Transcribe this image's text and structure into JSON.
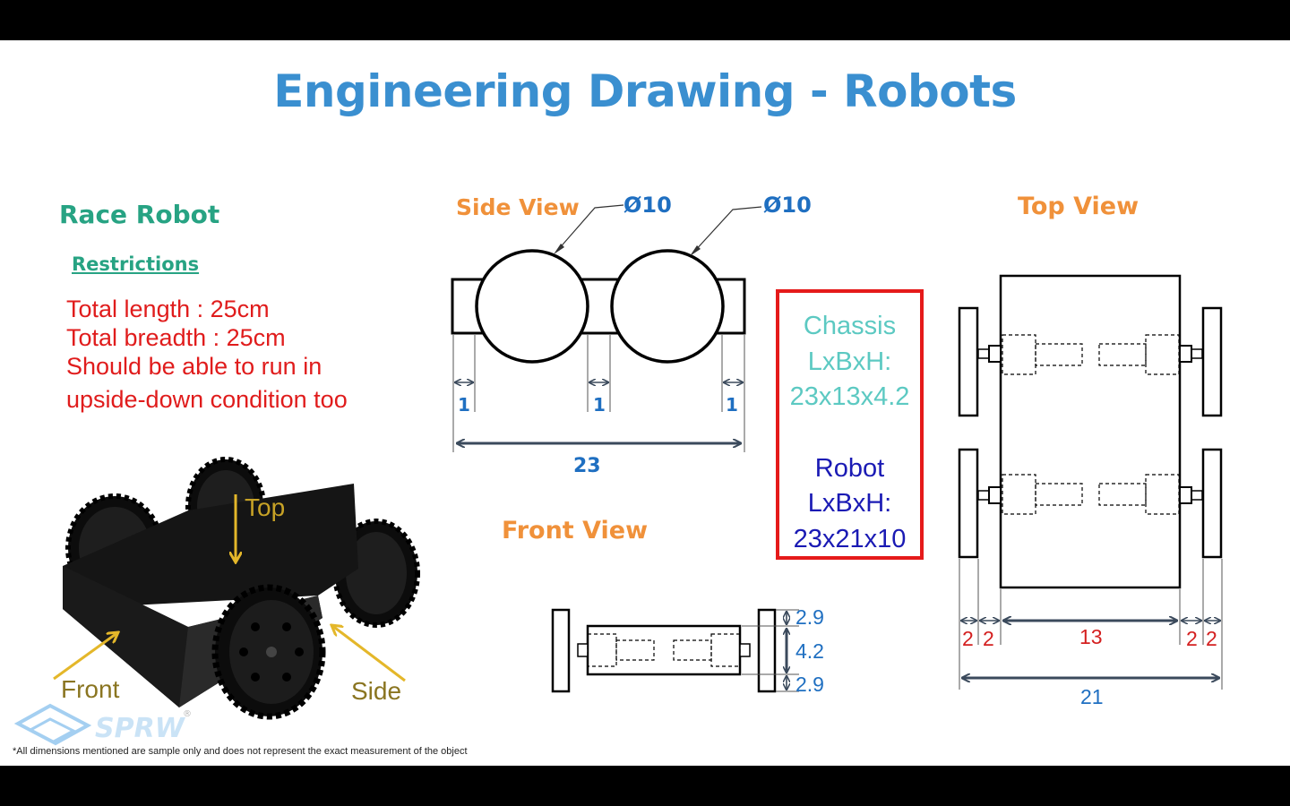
{
  "title": "Engineering Drawing - Robots",
  "left": {
    "heading": "Race Robot",
    "restrictions_label": "Restrictions",
    "restrictions": [
      "Total length : 25cm",
      "Total breadth : 25cm",
      "Should be able to run in",
      "upside-down condition too"
    ],
    "photo_labels": {
      "top": "Top",
      "front": "Front",
      "side": "Side"
    },
    "logo": "SPRW"
  },
  "side_view": {
    "label": "Side View",
    "wheel_diameter_left": "Ø10",
    "wheel_diameter_right": "Ø10",
    "gaps": [
      "1",
      "1",
      "1"
    ],
    "overall": "23"
  },
  "front_view": {
    "label": "Front View",
    "dims": [
      "2.9",
      "4.2",
      "2.9"
    ]
  },
  "chassis_box": {
    "chassis_title": "Chassis",
    "chassis_lbh_label": "LxBxH:",
    "chassis_value": "23x13x4.2",
    "robot_title": "Robot",
    "robot_lbh_label": "LxBxH:",
    "robot_value": "23x21x10"
  },
  "top_view": {
    "label": "Top View",
    "small_dims": [
      "2",
      "2",
      "2",
      "2"
    ],
    "inner": "13",
    "overall": "21"
  },
  "footnote": "*All dimensions mentioned are sample only and does not represent the exact measurement of the object",
  "colors": {
    "title_blue": "#3a8fd0",
    "green": "#27a383",
    "red": "#e01c1c",
    "orange": "#f0913a",
    "dim_blue": "#1f6fc1",
    "dim_red": "#d42020",
    "cyan": "#5cc9c2",
    "navy": "#1a1ab4"
  }
}
